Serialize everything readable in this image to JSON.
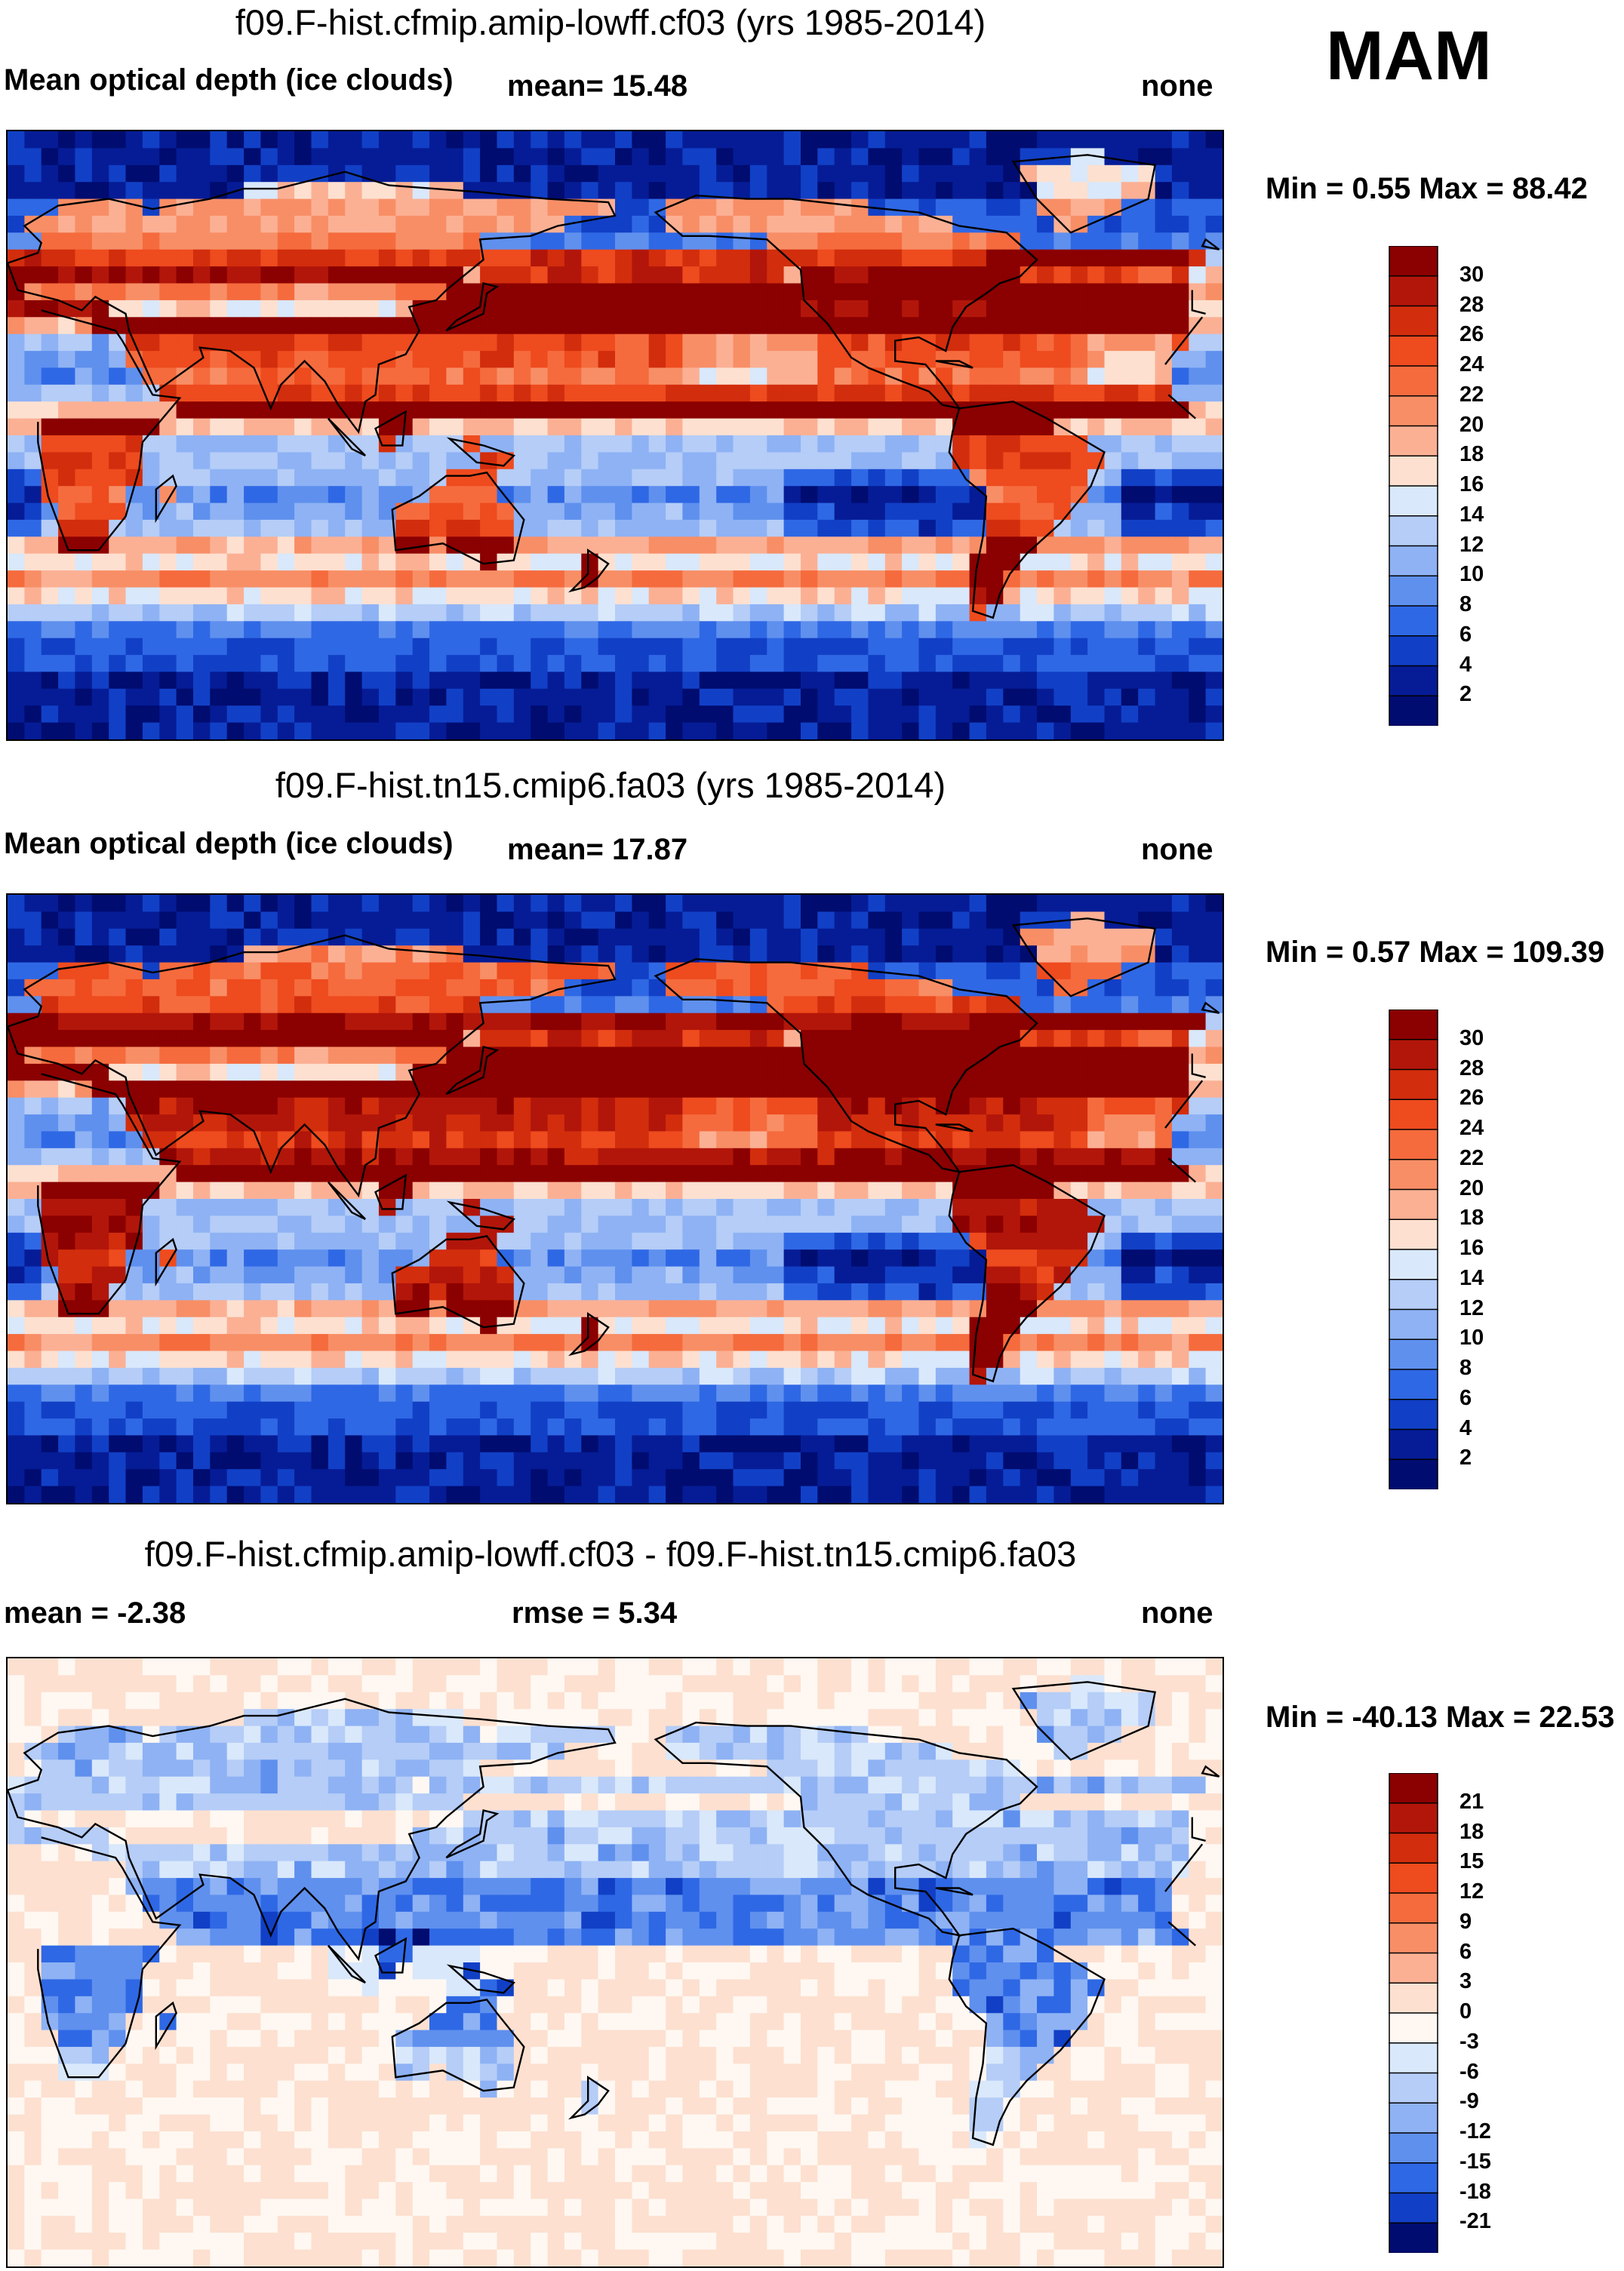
{
  "season": "MAM",
  "panels": [
    {
      "id": "top",
      "title": "f09.F-hist.cfmip.amip-lowff.cf03 (yrs 1985-2014)",
      "variable": "Mean optical depth (ice clouds)",
      "stat1": "mean=  15.48",
      "stat2": "",
      "units": "none",
      "minmax": "Min =   0.55 Max =  88.42",
      "colorbar_labels": [
        "30",
        "28",
        "26",
        "24",
        "22",
        "20",
        "18",
        "16",
        "14",
        "12",
        "10",
        "8",
        "6",
        "4",
        "2"
      ],
      "colors": [
        "#8b0000",
        "#b2160a",
        "#d22d0d",
        "#ee4b1e",
        "#f56b3d",
        "#f88e66",
        "#fbb094",
        "#fde0d0",
        "#d9e8fb",
        "#b5cdf7",
        "#8eb2f4",
        "#5f90ee",
        "#2f68e5",
        "#1140c6",
        "#061c96",
        "#000c70"
      ]
    },
    {
      "id": "middle",
      "title": "f09.F-hist.tn15.cmip6.fa03 (yrs 1985-2014)",
      "variable": "Mean optical depth (ice clouds)",
      "stat1": "mean=  17.87",
      "stat2": "",
      "units": "none",
      "minmax": "Min =   0.57 Max = 109.39",
      "colorbar_labels": [
        "30",
        "28",
        "26",
        "24",
        "22",
        "20",
        "18",
        "16",
        "14",
        "12",
        "10",
        "8",
        "6",
        "4",
        "2"
      ],
      "colors": [
        "#8b0000",
        "#b2160a",
        "#d22d0d",
        "#ee4b1e",
        "#f56b3d",
        "#f88e66",
        "#fbb094",
        "#fde0d0",
        "#d9e8fb",
        "#b5cdf7",
        "#8eb2f4",
        "#5f90ee",
        "#2f68e5",
        "#1140c6",
        "#061c96",
        "#000c70"
      ]
    },
    {
      "id": "bottom",
      "title": "f09.F-hist.cfmip.amip-lowff.cf03 - f09.F-hist.tn15.cmip6.fa03",
      "variable": "",
      "stat1": "mean =  -2.38",
      "stat2": "rmse =    5.34",
      "units": "none",
      "minmax": "Min = -40.13 Max =  22.53",
      "colorbar_labels": [
        "21",
        "18",
        "15",
        "12",
        "9",
        "6",
        "3",
        "0",
        "-3",
        "-6",
        "-9",
        "-12",
        "-15",
        "-18",
        "-21"
      ],
      "colors": [
        "#8b0000",
        "#b2160a",
        "#d22d0d",
        "#ee4b1e",
        "#f56b3d",
        "#f88e66",
        "#fbb094",
        "#fde0d0",
        "#fff8f2",
        "#d9e8fb",
        "#b5cdf7",
        "#8eb2f4",
        "#5f90ee",
        "#2f68e5",
        "#1140c6",
        "#000c70"
      ]
    }
  ],
  "chart_data": [
    {
      "type": "heatmap",
      "title": "f09.F-hist.cfmip.amip-lowff.cf03 (yrs 1985-2014)",
      "variable": "Mean optical depth (ice clouds)",
      "mean": 15.48,
      "units": "none",
      "min": 0.55,
      "max": 88.42,
      "colorbar_levels": [
        2,
        4,
        6,
        8,
        10,
        12,
        14,
        16,
        18,
        20,
        22,
        24,
        26,
        28,
        30
      ]
    },
    {
      "type": "heatmap",
      "title": "f09.F-hist.tn15.cmip6.fa03 (yrs 1985-2014)",
      "variable": "Mean optical depth (ice clouds)",
      "mean": 17.87,
      "units": "none",
      "min": 0.57,
      "max": 109.39,
      "colorbar_levels": [
        2,
        4,
        6,
        8,
        10,
        12,
        14,
        16,
        18,
        20,
        22,
        24,
        26,
        28,
        30
      ]
    },
    {
      "type": "heatmap",
      "title": "f09.F-hist.cfmip.amip-lowff.cf03 - f09.F-hist.tn15.cmip6.fa03",
      "mean": -2.38,
      "rmse": 5.34,
      "units": "none",
      "min": -40.13,
      "max": 22.53,
      "colorbar_levels": [
        -21,
        -18,
        -15,
        -12,
        -9,
        -6,
        -3,
        0,
        3,
        6,
        9,
        12,
        15,
        18,
        21
      ]
    }
  ]
}
